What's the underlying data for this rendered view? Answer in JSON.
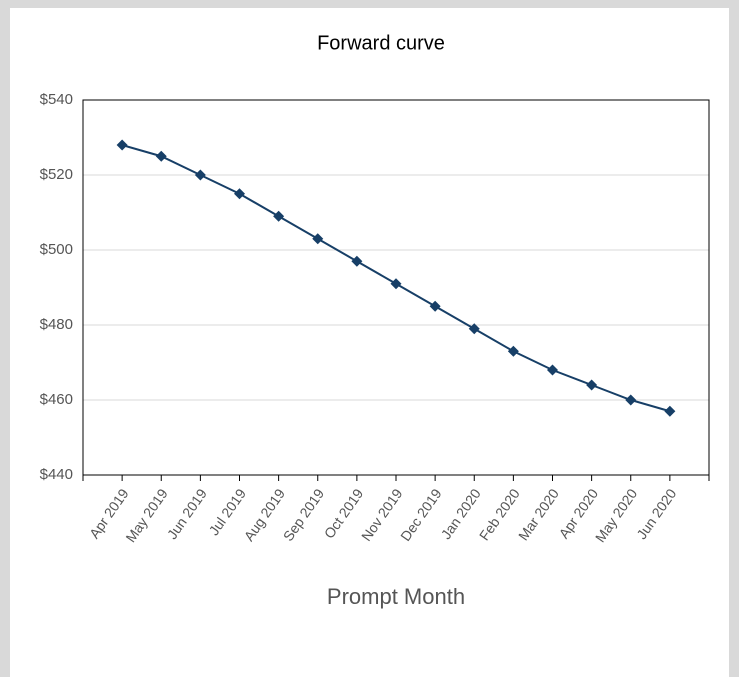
{
  "chart_data": {
    "type": "line",
    "title": "Forward curve",
    "x_label": "Prompt Month",
    "categories": [
      "Apr 2019",
      "May 2019",
      "Jun 2019",
      "Jul 2019",
      "Aug 2019",
      "Sep 2019",
      "Oct 2019",
      "Nov 2019",
      "Dec 2019",
      "Jan 2020",
      "Feb 2020",
      "Mar 2020",
      "Apr 2020",
      "May 2020",
      "Jun 2020"
    ],
    "series": [
      {
        "name": "Forward curve",
        "color": "#173f67",
        "values": [
          528,
          525,
          520,
          515,
          509,
          503,
          497,
          491,
          485,
          479,
          473,
          468,
          464,
          460,
          457
        ]
      }
    ],
    "ylim": [
      440,
      540
    ],
    "yticks": [
      {
        "value": 440,
        "label": "$440"
      },
      {
        "value": 460,
        "label": "$460"
      },
      {
        "value": 480,
        "label": "$480"
      },
      {
        "value": 500,
        "label": "$500"
      },
      {
        "value": 520,
        "label": "$520"
      },
      {
        "value": 540,
        "label": "$540"
      }
    ],
    "grid": true,
    "marker": "diamond"
  }
}
